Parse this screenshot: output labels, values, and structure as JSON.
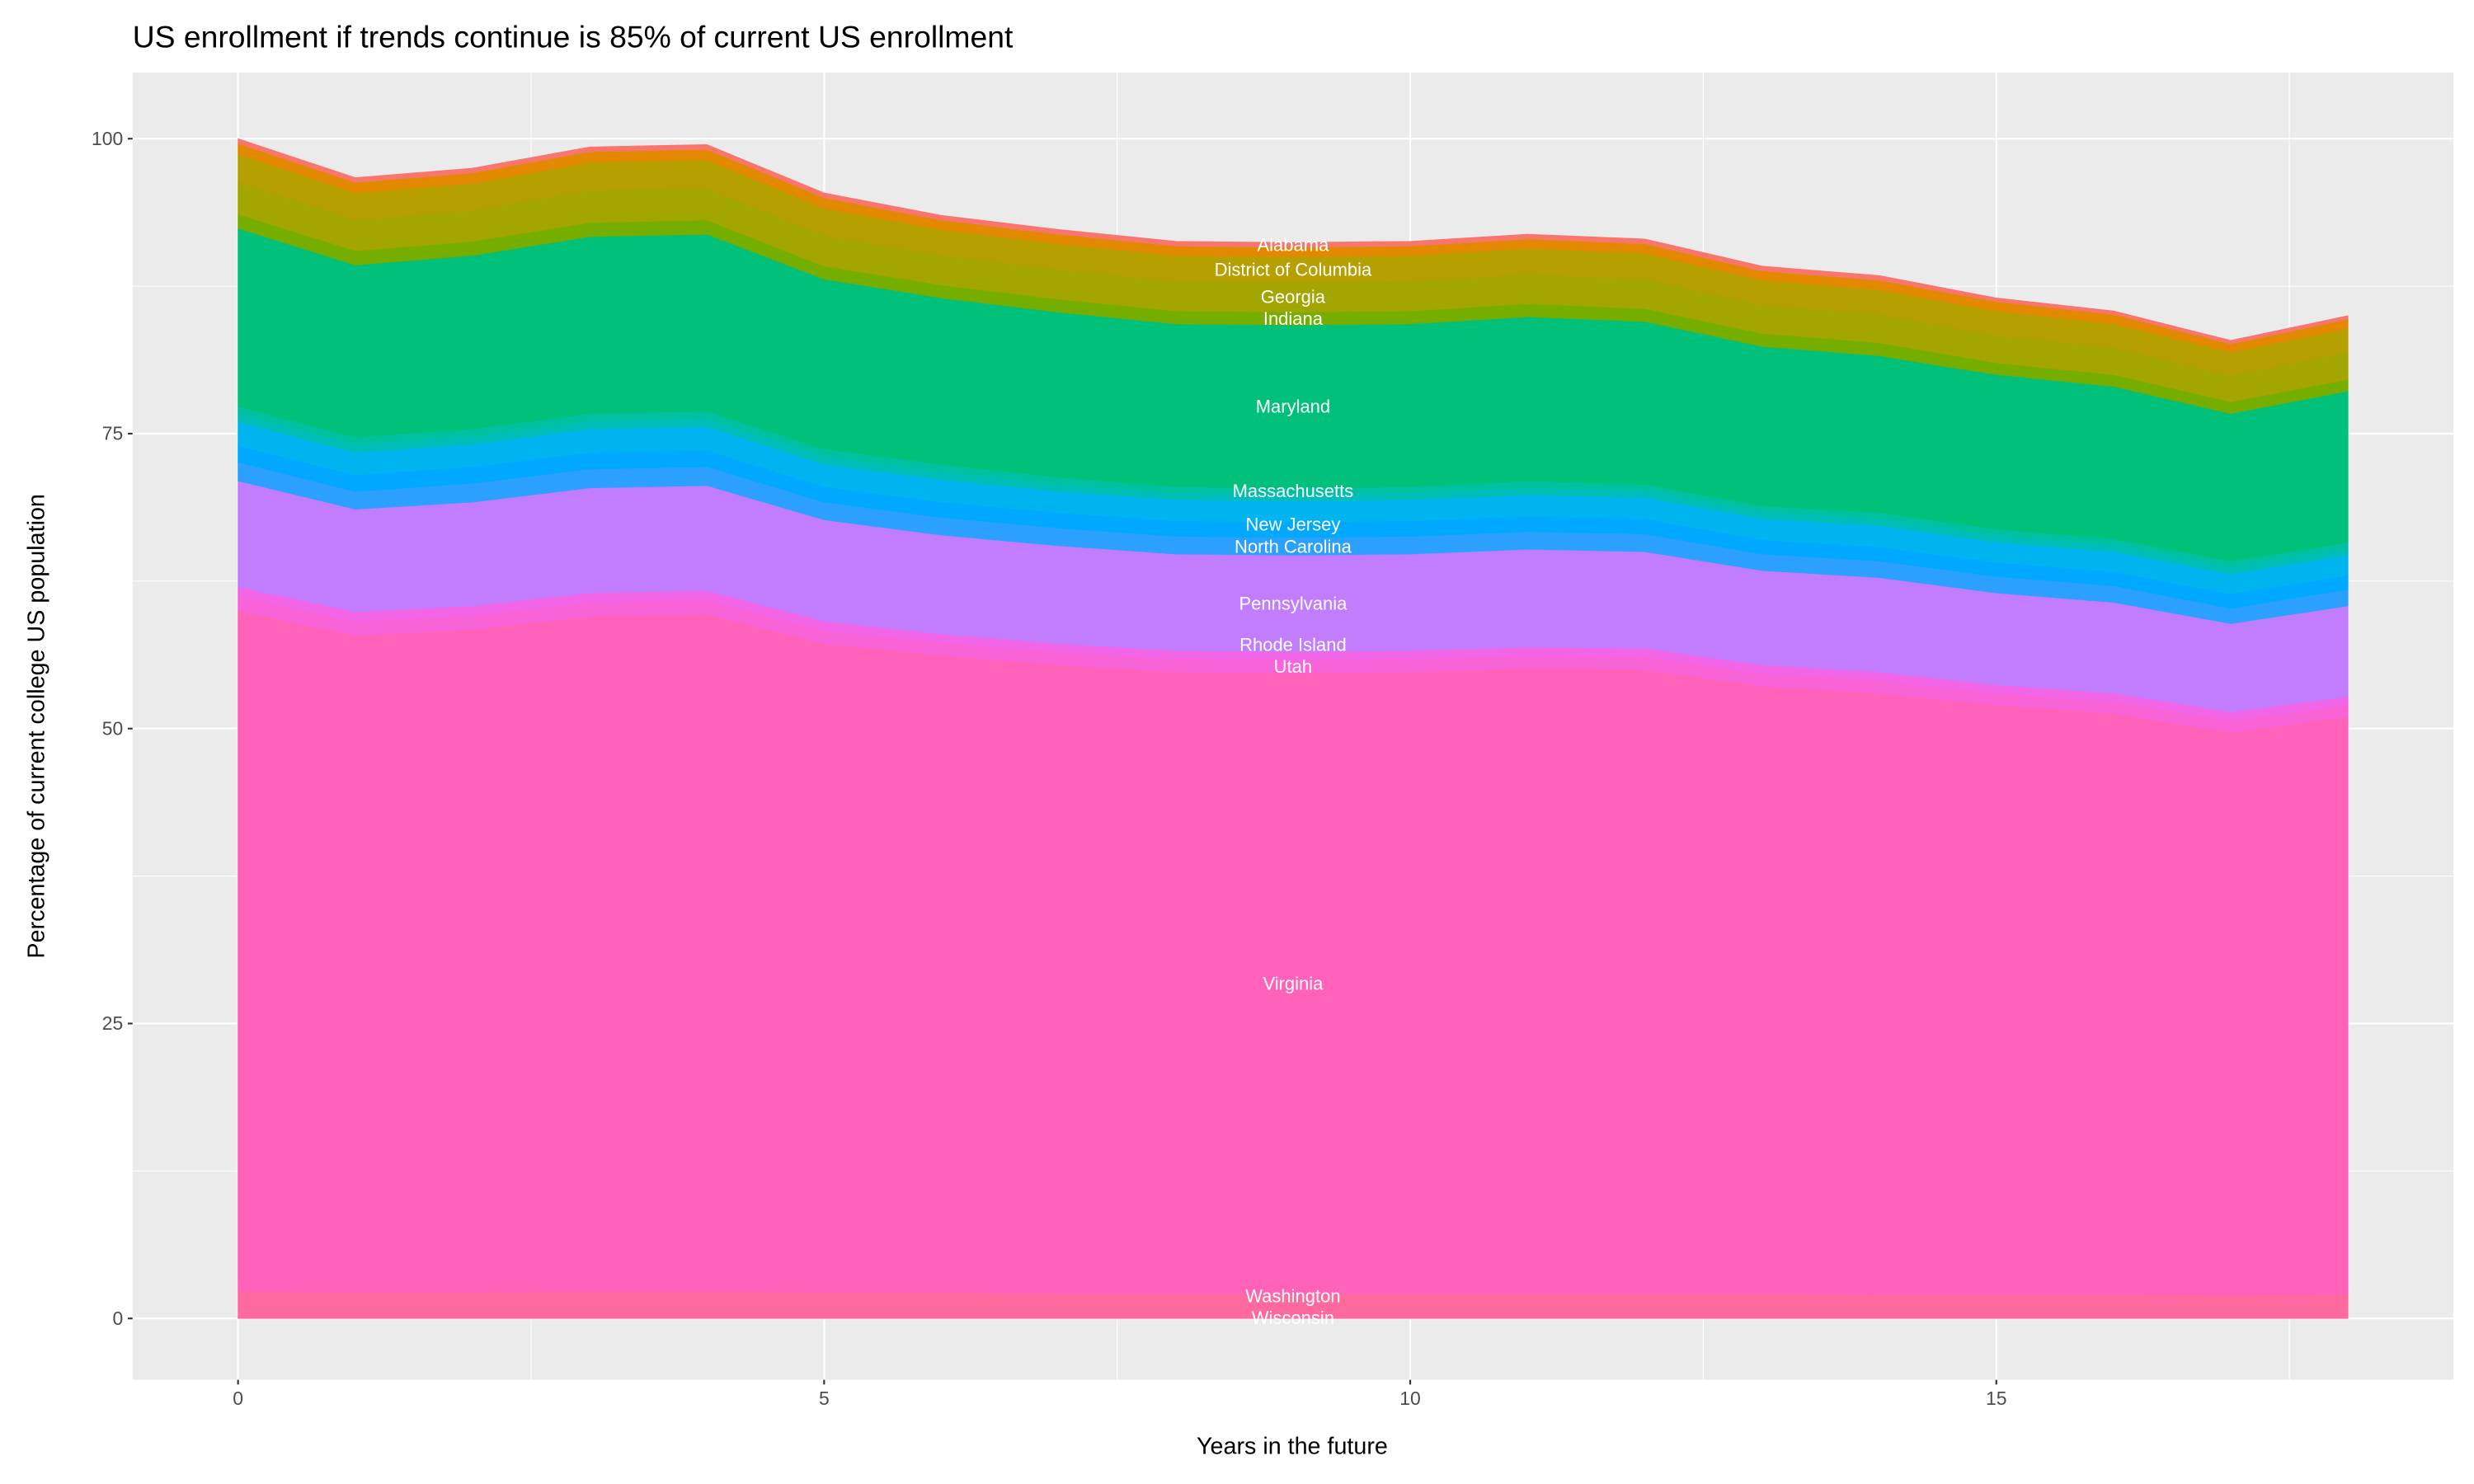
{
  "chart_data": {
    "type": "area",
    "stacked": true,
    "title": "US enrollment if trends continue is 85% of current US enrollment",
    "xlabel": "Years in the future",
    "ylabel": "Percentage of current college US population",
    "x": [
      0,
      1,
      2,
      3,
      4,
      5,
      6,
      7,
      8,
      9,
      10,
      11,
      12,
      13,
      14,
      15,
      16,
      17,
      18
    ],
    "xlim": [
      -0.9,
      18.9
    ],
    "ylim": [
      -5.2,
      105.6
    ],
    "xticks": [
      0,
      5,
      10,
      15
    ],
    "yticks": [
      0,
      25,
      50,
      75,
      100
    ],
    "grid": true,
    "legend": "none",
    "label_at_x": 9,
    "background": "#ebebeb",
    "series": [
      {
        "name": "Wisconsin",
        "color": "#ff6c9c",
        "values": [
          0.1,
          0.1,
          0.1,
          0.1,
          0.1,
          0.1,
          0.1,
          0.1,
          0.1,
          0.1,
          0.1,
          0.1,
          0.1,
          0.1,
          0.1,
          0.1,
          0.1,
          0.1,
          0.1
        ]
      },
      {
        "name": "Washington",
        "color": "#ff6a9e",
        "values": [
          2.2,
          2.1,
          2.1,
          2.2,
          2.2,
          2.1,
          2.1,
          2.0,
          2.0,
          2.0,
          2.0,
          2.0,
          2.0,
          2.0,
          1.9,
          1.9,
          1.9,
          1.8,
          1.9
        ]
      },
      {
        "name": "Virginia",
        "color": "#ff62b8",
        "values": [
          57.7,
          55.7,
          56.2,
          57.2,
          57.4,
          55.0,
          54.0,
          53.3,
          52.7,
          52.6,
          52.7,
          53.0,
          52.9,
          51.5,
          51.0,
          50.0,
          49.3,
          47.8,
          49.0
        ]
      },
      {
        "name": "Utah",
        "color": "#f863d8",
        "values": [
          1.2,
          1.2,
          1.2,
          1.2,
          1.2,
          1.1,
          1.1,
          1.1,
          1.1,
          1.1,
          1.1,
          1.1,
          1.1,
          1.1,
          1.1,
          1.0,
          1.0,
          1.0,
          1.0
        ]
      },
      {
        "name": "Rhode Island",
        "color": "#f265e6",
        "values": [
          0.8,
          0.8,
          0.8,
          0.8,
          0.8,
          0.8,
          0.7,
          0.7,
          0.7,
          0.7,
          0.7,
          0.7,
          0.7,
          0.7,
          0.7,
          0.7,
          0.7,
          0.7,
          0.7
        ]
      },
      {
        "name": "Pennsylvania",
        "color": "#c27dfe",
        "values": [
          9.0,
          8.7,
          8.8,
          8.9,
          8.9,
          8.6,
          8.4,
          8.3,
          8.2,
          8.2,
          8.2,
          8.3,
          8.2,
          8.0,
          8.0,
          7.8,
          7.7,
          7.5,
          7.7
        ]
      },
      {
        "name": "North Carolina",
        "color": "#2ba0ff",
        "values": [
          1.6,
          1.5,
          1.6,
          1.6,
          1.6,
          1.5,
          1.5,
          1.5,
          1.5,
          1.5,
          1.5,
          1.5,
          1.5,
          1.4,
          1.4,
          1.4,
          1.4,
          1.3,
          1.4
        ]
      },
      {
        "name": "New Jersey",
        "color": "#00a8ff",
        "values": [
          1.4,
          1.4,
          1.4,
          1.4,
          1.4,
          1.3,
          1.3,
          1.3,
          1.3,
          1.3,
          1.3,
          1.3,
          1.3,
          1.2,
          1.2,
          1.2,
          1.2,
          1.2,
          1.2
        ]
      },
      {
        "color": "#00b4f0",
        "values": [
          2.0,
          1.9,
          1.9,
          2.0,
          2.0,
          1.9,
          1.9,
          1.8,
          1.8,
          1.8,
          1.8,
          1.8,
          1.8,
          1.8,
          1.8,
          1.7,
          1.7,
          1.7,
          1.7
        ]
      },
      {
        "color": "#00bdb8",
        "values": [
          0.7,
          0.7,
          0.7,
          0.7,
          0.7,
          0.7,
          0.7,
          0.6,
          0.6,
          0.6,
          0.6,
          0.6,
          0.6,
          0.6,
          0.6,
          0.6,
          0.6,
          0.6,
          0.6
        ]
      },
      {
        "name": "Massachusetts",
        "color": "#00c0a0",
        "values": [
          0.6,
          0.6,
          0.6,
          0.6,
          0.6,
          0.6,
          0.6,
          0.6,
          0.5,
          0.5,
          0.5,
          0.6,
          0.5,
          0.5,
          0.5,
          0.5,
          0.5,
          0.5,
          0.5
        ]
      },
      {
        "name": "Maryland",
        "color": "#00c07a",
        "values": [
          15.1,
          14.6,
          14.7,
          15.0,
          15.0,
          14.4,
          14.1,
          14.0,
          13.8,
          13.8,
          13.8,
          13.9,
          13.8,
          13.5,
          13.3,
          13.1,
          12.9,
          12.5,
          12.8
        ]
      },
      {
        "name": "Indiana",
        "color": "#76ae00",
        "values": [
          1.2,
          1.2,
          1.2,
          1.2,
          1.2,
          1.1,
          1.1,
          1.1,
          1.1,
          1.1,
          1.1,
          1.1,
          1.1,
          1.1,
          1.1,
          1.0,
          1.0,
          1.0,
          1.0
        ]
      },
      {
        "name": "Georgia",
        "color": "#a3a500",
        "values": [
          2.7,
          2.6,
          2.6,
          2.7,
          2.7,
          2.6,
          2.5,
          2.5,
          2.5,
          2.5,
          2.5,
          2.5,
          2.5,
          2.4,
          2.4,
          2.3,
          2.3,
          2.2,
          2.3
        ]
      },
      {
        "name": "District of Columbia",
        "color": "#b69f00",
        "values": [
          2.4,
          2.3,
          2.3,
          2.4,
          2.4,
          2.3,
          2.2,
          2.2,
          2.2,
          2.2,
          2.2,
          2.2,
          2.2,
          2.1,
          2.1,
          2.1,
          2.0,
          2.0,
          2.0
        ]
      },
      {
        "color": "#e38900",
        "values": [
          0.9,
          0.9,
          0.9,
          0.9,
          0.9,
          0.9,
          0.8,
          0.8,
          0.8,
          0.8,
          0.8,
          0.8,
          0.8,
          0.8,
          0.8,
          0.8,
          0.8,
          0.7,
          0.8
        ]
      },
      {
        "name": "Alabama",
        "color": "#f8766d",
        "values": [
          0.4,
          0.4,
          0.4,
          0.4,
          0.4,
          0.4,
          0.4,
          0.4,
          0.4,
          0.4,
          0.4,
          0.4,
          0.4,
          0.4,
          0.4,
          0.3,
          0.3,
          0.3,
          0.3
        ]
      }
    ]
  }
}
